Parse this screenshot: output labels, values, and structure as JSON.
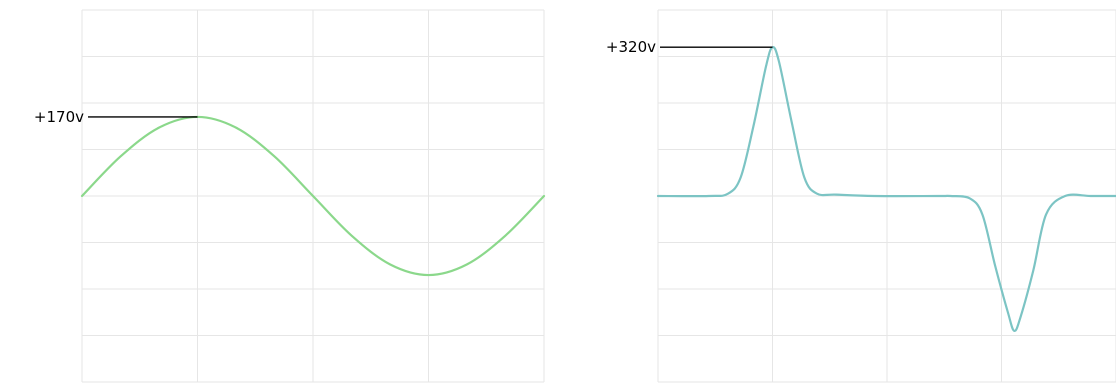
{
  "chart_data": [
    {
      "type": "line",
      "title": "",
      "xlabel": "",
      "ylabel": "",
      "grid": true,
      "legend": "none",
      "series_color": "#8bd88b",
      "marker_color": "#000000",
      "grid_color": "#e6e6e6",
      "xlim": [
        0,
        360
      ],
      "ylim": [
        -400,
        400
      ],
      "peak_label": "+170v",
      "peak_value": 170,
      "peak_x": 90,
      "series": [
        {
          "x": [
            0,
            30,
            60,
            90,
            120,
            150,
            180,
            210,
            240,
            270,
            300,
            330,
            360
          ],
          "values": [
            0,
            85,
            147,
            170,
            147,
            85,
            0,
            -85,
            -147,
            -170,
            -147,
            -85,
            0
          ]
        }
      ]
    },
    {
      "type": "line",
      "title": "",
      "xlabel": "",
      "ylabel": "",
      "grid": true,
      "legend": "none",
      "series_color": "#7cc4c4",
      "marker_color": "#000000",
      "grid_color": "#e6e6e6",
      "xlim": [
        0,
        360
      ],
      "ylim": [
        -400,
        400
      ],
      "peak_label": "+320v",
      "peak_value": 320,
      "peak_x": 90,
      "series": [
        {
          "x": [
            0,
            40,
            55,
            65,
            75,
            85,
            90,
            95,
            105,
            115,
            125,
            140,
            170,
            220,
            230,
            245,
            255,
            265,
            275,
            280,
            285,
            295,
            305,
            320,
            340,
            360
          ],
          "values": [
            0,
            0,
            5,
            40,
            150,
            280,
            320,
            290,
            160,
            40,
            5,
            3,
            0,
            0,
            0,
            -5,
            -40,
            -150,
            -250,
            -290,
            -260,
            -160,
            -40,
            0,
            0,
            0
          ]
        }
      ]
    }
  ]
}
